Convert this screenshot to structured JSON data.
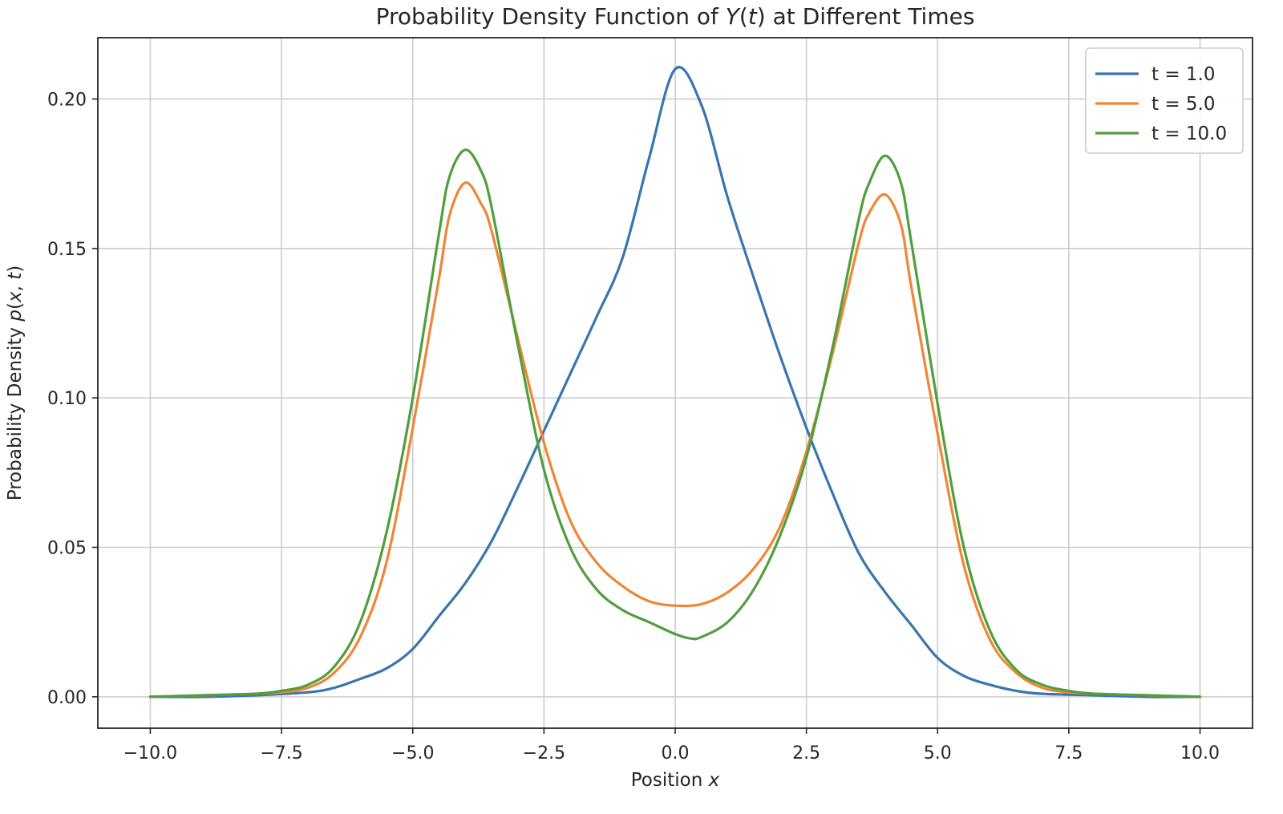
{
  "chart_data": {
    "type": "line",
    "title": "Probability Density Function of Y(t) at Different Times",
    "xlabel": "Position x",
    "ylabel": "Probability Density p(x, t)",
    "xlim": [
      -11.0,
      11.0
    ],
    "ylim": [
      -0.0105,
      0.2205
    ],
    "x_ticks": [
      -10.0,
      -7.5,
      -5.0,
      -2.5,
      0.0,
      2.5,
      5.0,
      7.5,
      10.0
    ],
    "x_tick_labels": [
      "−10.0",
      "−7.5",
      "−5.0",
      "−2.5",
      "0.0",
      "2.5",
      "5.0",
      "7.5",
      "10.0"
    ],
    "y_ticks": [
      0.0,
      0.05,
      0.1,
      0.15,
      0.2
    ],
    "y_tick_labels": [
      "0.00",
      "0.05",
      "0.10",
      "0.15",
      "0.20"
    ],
    "grid": true,
    "legend_position": "top-right",
    "series": [
      {
        "name": "t = 1.0",
        "color": "#3b75af",
        "x": [
          -10,
          -9,
          -8,
          -7,
          -6.5,
          -6,
          -5.5,
          -5,
          -4.5,
          -4,
          -3.5,
          -3,
          -2.5,
          -2,
          -1.5,
          -1,
          -0.5,
          0,
          0.5,
          1,
          1.5,
          2,
          2.5,
          3,
          3.5,
          4,
          4.5,
          5,
          5.5,
          6,
          6.5,
          7,
          8,
          9,
          10
        ],
        "y": [
          0.0,
          0.0,
          0.0005,
          0.0015,
          0.003,
          0.006,
          0.0095,
          0.016,
          0.027,
          0.038,
          0.052,
          0.07,
          0.089,
          0.108,
          0.127,
          0.147,
          0.18,
          0.21,
          0.198,
          0.167,
          0.14,
          0.114,
          0.09,
          0.068,
          0.048,
          0.035,
          0.024,
          0.013,
          0.007,
          0.004,
          0.002,
          0.001,
          0.0005,
          0.0,
          0.0
        ]
      },
      {
        "name": "t = 5.0",
        "color": "#ef8636",
        "x": [
          -10,
          -9,
          -8,
          -7.5,
          -7,
          -6.5,
          -6,
          -5.5,
          -5,
          -4.5,
          -4.3,
          -4,
          -3.7,
          -3.5,
          -3,
          -2.5,
          -2,
          -1.5,
          -1,
          -0.5,
          0,
          0.5,
          1,
          1.5,
          2,
          2.5,
          3,
          3.5,
          3.7,
          4,
          4.3,
          4.5,
          5,
          5.5,
          6,
          6.5,
          7,
          7.5,
          8,
          9,
          10
        ],
        "y": [
          0.0,
          0.0005,
          0.001,
          0.0015,
          0.003,
          0.008,
          0.02,
          0.045,
          0.09,
          0.14,
          0.161,
          0.172,
          0.165,
          0.156,
          0.12,
          0.085,
          0.059,
          0.045,
          0.037,
          0.032,
          0.0305,
          0.031,
          0.035,
          0.043,
          0.057,
          0.082,
          0.115,
          0.152,
          0.162,
          0.168,
          0.158,
          0.137,
          0.088,
          0.044,
          0.019,
          0.008,
          0.003,
          0.0015,
          0.001,
          0.0005,
          0.0
        ]
      },
      {
        "name": "t = 10.0",
        "color": "#519e3e",
        "x": [
          -10,
          -9,
          -8,
          -7.5,
          -7,
          -6.5,
          -6,
          -5.5,
          -5,
          -4.5,
          -4.3,
          -4,
          -3.7,
          -3.5,
          -3,
          -2.5,
          -2,
          -1.5,
          -1,
          -0.5,
          0,
          0.3,
          0.5,
          1,
          1.5,
          2,
          2.5,
          3,
          3.5,
          3.7,
          4,
          4.3,
          4.5,
          5,
          5.5,
          6,
          6.5,
          7,
          7.5,
          8,
          9,
          10
        ],
        "y": [
          0.0,
          0.0005,
          0.001,
          0.002,
          0.004,
          0.01,
          0.025,
          0.055,
          0.1,
          0.155,
          0.174,
          0.183,
          0.176,
          0.164,
          0.118,
          0.076,
          0.05,
          0.036,
          0.029,
          0.025,
          0.021,
          0.0195,
          0.02,
          0.025,
          0.036,
          0.054,
          0.08,
          0.117,
          0.16,
          0.172,
          0.181,
          0.172,
          0.152,
          0.098,
          0.05,
          0.022,
          0.009,
          0.004,
          0.002,
          0.001,
          0.0005,
          0.0
        ]
      }
    ]
  }
}
